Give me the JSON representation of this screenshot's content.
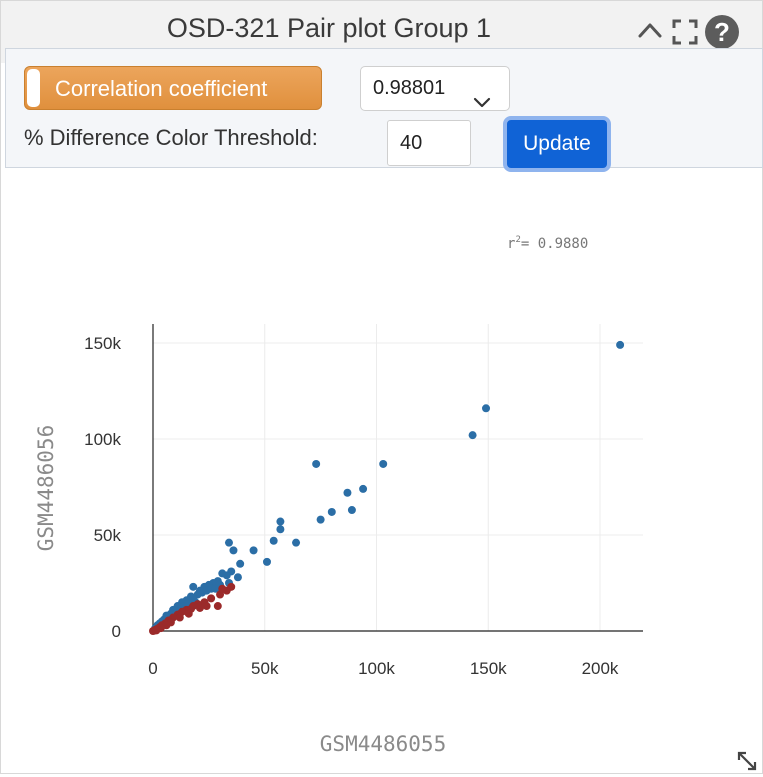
{
  "header": {
    "title": "OSD-321 Pair plot Group 1",
    "icons": [
      "chevron-up-icon",
      "fullscreen-icon",
      "help-icon"
    ]
  },
  "controls": {
    "correlation_label": "Correlation coefficient",
    "correlation_value": "0.98801",
    "threshold_label": "% Difference Color Threshold:",
    "threshold_value": "40",
    "update_label": "Update"
  },
  "colors": {
    "series_blue": "#2b6ea6",
    "series_red": "#9b2a2a",
    "accent_orange": "#e49646",
    "update_blue": "#1063d6"
  },
  "chart_data": {
    "type": "scatter",
    "annotation": "= 0.9880",
    "annotation_prefix": "r",
    "annotation_sup": "2",
    "xlabel": "GSM4486055",
    "ylabel": "GSM4486056",
    "xlim": [
      -8000,
      222000
    ],
    "ylim": [
      -8000,
      158000
    ],
    "xticks": [
      0,
      50000,
      100000,
      150000,
      200000
    ],
    "xtick_labels": [
      "0",
      "50k",
      "100k",
      "150k",
      "200k"
    ],
    "yticks": [
      0,
      50000,
      100000,
      150000
    ],
    "ytick_labels": [
      "0",
      "50k",
      "100k",
      "150k"
    ],
    "grid": true,
    "series": [
      {
        "color": "#2b6ea6",
        "points": [
          [
            209000,
            149000
          ],
          [
            149000,
            116000
          ],
          [
            143000,
            102000
          ],
          [
            103000,
            87000
          ],
          [
            73000,
            87000
          ],
          [
            94000,
            74000
          ],
          [
            87000,
            72000
          ],
          [
            89000,
            63000
          ],
          [
            80000,
            62000
          ],
          [
            75000,
            58000
          ],
          [
            57000,
            57000
          ],
          [
            57000,
            53000
          ],
          [
            64000,
            46000
          ],
          [
            54000,
            47000
          ],
          [
            45000,
            42000
          ],
          [
            34000,
            46000
          ],
          [
            36000,
            42000
          ],
          [
            51000,
            36000
          ],
          [
            39000,
            35000
          ],
          [
            35000,
            31000
          ],
          [
            38000,
            28000
          ],
          [
            33000,
            29000
          ],
          [
            31000,
            30000
          ],
          [
            29000,
            26000
          ],
          [
            34000,
            25000
          ],
          [
            27000,
            25000
          ],
          [
            25000,
            24000
          ],
          [
            23000,
            23000
          ],
          [
            18000,
            23000
          ],
          [
            22000,
            20000
          ],
          [
            20000,
            19000
          ],
          [
            17000,
            18000
          ],
          [
            15000,
            16000
          ],
          [
            13000,
            15000
          ],
          [
            11000,
            13000
          ],
          [
            9000,
            11000
          ],
          [
            8000,
            9000
          ],
          [
            6000,
            8000
          ],
          [
            5000,
            6000
          ],
          [
            4000,
            5000
          ],
          [
            3000,
            4000
          ],
          [
            2000,
            3000
          ],
          [
            1000,
            1500
          ],
          [
            24000,
            21000
          ],
          [
            21000,
            21000
          ],
          [
            18000,
            17000
          ],
          [
            14000,
            13000
          ],
          [
            12000,
            10000
          ],
          [
            26000,
            22000
          ],
          [
            30000,
            24000
          ],
          [
            16000,
            14000
          ],
          [
            10000,
            8000
          ],
          [
            7000,
            6000
          ],
          [
            19000,
            15000
          ],
          [
            28000,
            22000
          ]
        ]
      },
      {
        "color": "#9b2a2a",
        "points": [
          [
            35000,
            23000
          ],
          [
            33000,
            21000
          ],
          [
            30000,
            19000
          ],
          [
            26000,
            17000
          ],
          [
            23000,
            15000
          ],
          [
            20000,
            14000
          ],
          [
            18000,
            13000
          ],
          [
            15000,
            11000
          ],
          [
            13000,
            10000
          ],
          [
            11000,
            8500
          ],
          [
            9000,
            7000
          ],
          [
            7000,
            5500
          ],
          [
            5500,
            4000
          ],
          [
            4000,
            3000
          ],
          [
            3000,
            2000
          ],
          [
            2000,
            1200
          ],
          [
            1000,
            600
          ],
          [
            500,
            200
          ],
          [
            0,
            0
          ],
          [
            24000,
            13000
          ],
          [
            29000,
            13000
          ],
          [
            21000,
            12000
          ],
          [
            16000,
            9000
          ],
          [
            12000,
            7000
          ],
          [
            8000,
            4500
          ],
          [
            6000,
            3000
          ],
          [
            3500,
            1500
          ],
          [
            1500,
            300
          ],
          [
            31000,
            22000
          ],
          [
            17000,
            11500
          ]
        ]
      }
    ]
  }
}
